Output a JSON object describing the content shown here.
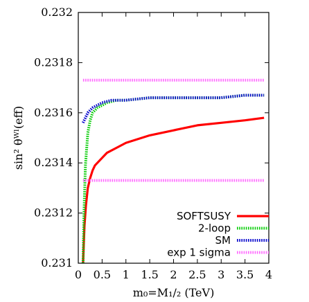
{
  "chart_data": {
    "type": "line",
    "xlabel": "m₀=M₁/₂ (TeV)",
    "ylabel": "sin² θᵂˡ(eff)",
    "xlim": [
      0,
      4
    ],
    "ylim": [
      0.231,
      0.232
    ],
    "xticks": [
      "0",
      "0.5",
      "1",
      "1.5",
      "2",
      "2.5",
      "3",
      "3.5",
      "4"
    ],
    "yticks": [
      "0.231",
      "0.2312",
      "0.2314",
      "0.2316",
      "0.2318",
      "0.232"
    ],
    "grid": false,
    "legend_position": "bottom-right",
    "series": [
      {
        "name": "SOFTSUSY",
        "color": "#ff0000",
        "style": "solid",
        "x": [
          0.1,
          0.13,
          0.16,
          0.2,
          0.25,
          0.3,
          0.35,
          0.4,
          0.5,
          0.6,
          0.8,
          1.0,
          1.5,
          2.0,
          2.5,
          3.0,
          3.5,
          3.9
        ],
        "y": [
          0.231,
          0.23115,
          0.23123,
          0.2313,
          0.23134,
          0.23137,
          0.23139,
          0.2314,
          0.23142,
          0.23144,
          0.23146,
          0.23148,
          0.23151,
          0.23153,
          0.23155,
          0.23156,
          0.23157,
          0.23158
        ]
      },
      {
        "name": "2-loop",
        "color": "#00cc00",
        "style": "dotted",
        "x": [
          0.1,
          0.12,
          0.15,
          0.2,
          0.25,
          0.3,
          0.4,
          0.5,
          0.6,
          0.8,
          1.0,
          1.5,
          2.0,
          2.5,
          3.0,
          3.5,
          3.9
        ],
        "y": [
          0.231,
          0.2312,
          0.23139,
          0.23152,
          0.23157,
          0.2316,
          0.23162,
          0.23163,
          0.23164,
          0.23165,
          0.23165,
          0.23166,
          0.23166,
          0.23166,
          0.23166,
          0.23167,
          0.23167
        ]
      },
      {
        "name": "SM",
        "color": "#0000cc",
        "style": "dotted",
        "x": [
          0.1,
          0.15,
          0.2,
          0.3,
          0.4,
          0.5,
          0.7,
          1.0,
          1.5,
          2.0,
          2.5,
          3.0,
          3.5,
          3.9
        ],
        "y": [
          0.23156,
          0.23158,
          0.2316,
          0.23162,
          0.23163,
          0.23164,
          0.23165,
          0.23165,
          0.23166,
          0.23166,
          0.23166,
          0.23166,
          0.23167,
          0.23167
        ]
      },
      {
        "name": "exp 1 sigma",
        "color": "#ff66ff",
        "style": "dotted",
        "lines_y": [
          0.23173,
          0.23133
        ],
        "x": [
          0.1,
          3.9
        ]
      }
    ]
  }
}
